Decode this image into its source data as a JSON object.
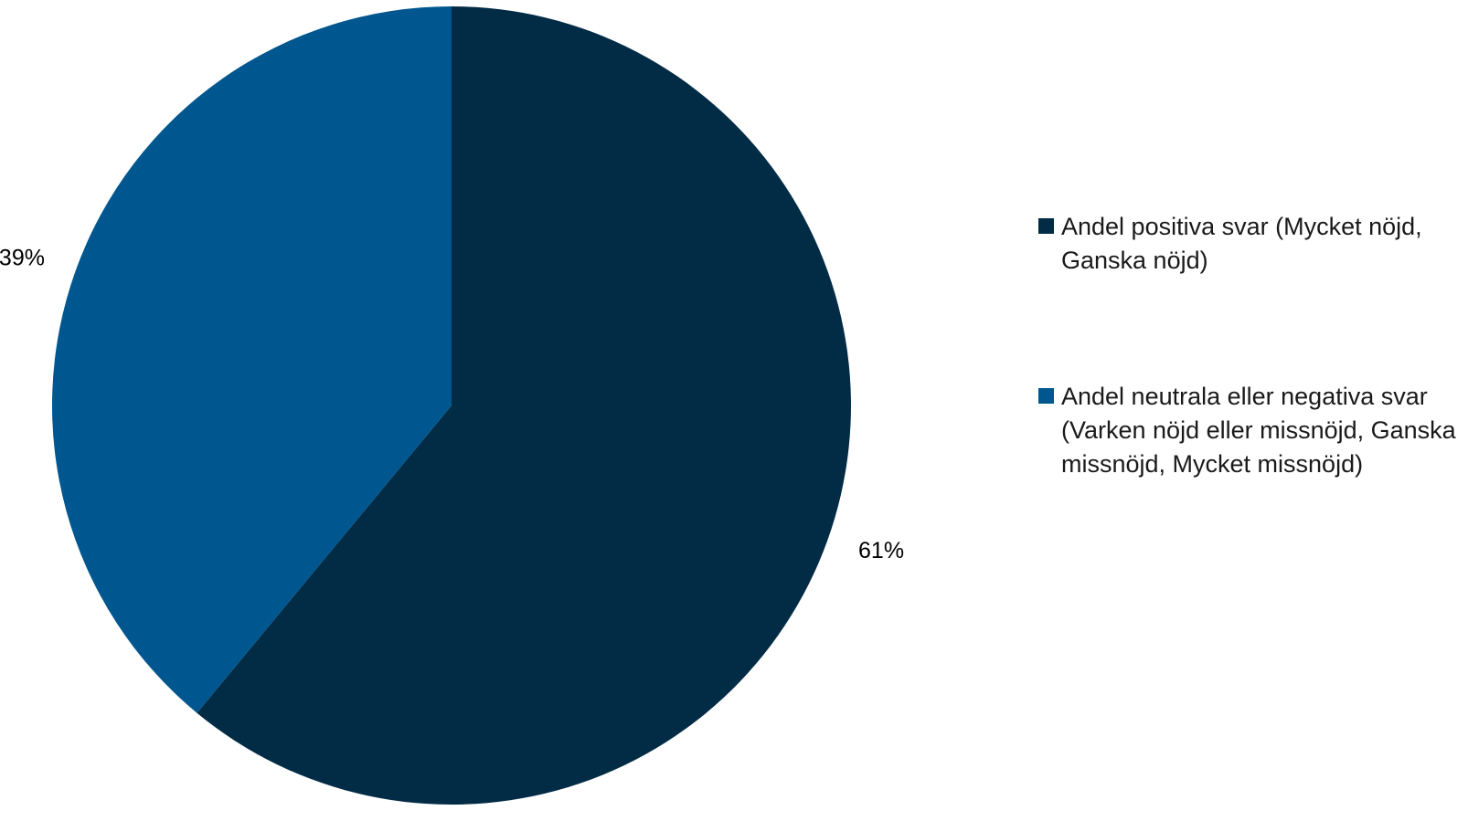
{
  "chart_data": {
    "type": "pie",
    "start_angle_deg": 0,
    "direction": "clockwise",
    "legend_position": "right",
    "slices": [
      {
        "label": "Andel positiva svar (Mycket nöjd, Ganska nöjd)",
        "value": 61,
        "value_label": "61%",
        "color": "#022b45"
      },
      {
        "label": "Andel neutrala eller negativa svar (Varken nöjd eller missnöjd, Ganska missnöjd, Mycket missnöjd)",
        "value": 39,
        "value_label": "39%",
        "color": "#00568f"
      }
    ]
  }
}
